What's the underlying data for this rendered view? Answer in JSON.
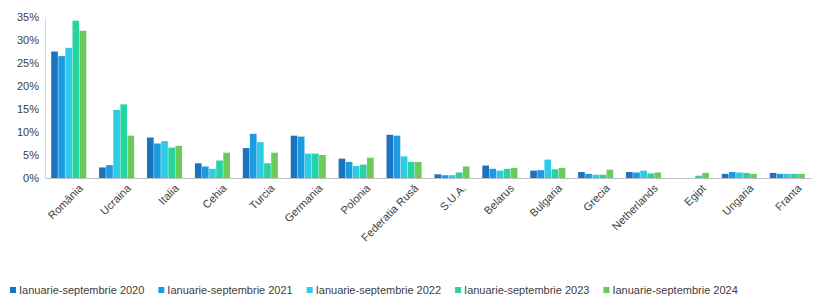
{
  "chart_data": {
    "type": "bar",
    "categories": [
      "România",
      "Ucraina",
      "Italia",
      "Cehia",
      "Turcia",
      "Germania",
      "Polonia",
      "Federatia Rusă",
      "S.U.A.",
      "Belarus",
      "Bulgaria",
      "Grecia",
      "Netherlands",
      "Egipt",
      "Ungaria",
      "Franta"
    ],
    "series": [
      {
        "name": "Ianuarie-septembrie 2020",
        "color": "#1e73be",
        "values": [
          27.5,
          2.3,
          8.8,
          3.2,
          6.5,
          9.2,
          4.2,
          9.4,
          0.8,
          2.7,
          1.6,
          1.3,
          1.3,
          0,
          0.9,
          1.1
        ]
      },
      {
        "name": "Ianuarie-septembrie 2021",
        "color": "#1b9be0",
        "values": [
          26.5,
          2.8,
          7.5,
          2.5,
          9.6,
          9.0,
          3.5,
          9.2,
          0.6,
          2.0,
          1.7,
          0.9,
          1.2,
          0,
          1.3,
          0.9
        ]
      },
      {
        "name": "Ianuarie-septembrie 2022",
        "color": "#2ccbe6",
        "values": [
          28.3,
          14.8,
          8.0,
          2.0,
          7.8,
          5.3,
          2.6,
          4.7,
          0.6,
          1.6,
          4.0,
          0.7,
          1.6,
          0,
          1.2,
          0.9
        ]
      },
      {
        "name": "Ianuarie-septembrie 2023",
        "color": "#27d4a0",
        "values": [
          34.2,
          16.0,
          6.6,
          3.8,
          3.2,
          5.3,
          2.9,
          3.5,
          1.2,
          2.0,
          1.9,
          0.7,
          1.0,
          0.5,
          1.1,
          0.9
        ]
      },
      {
        "name": "Ianuarie-septembrie 2024",
        "color": "#6cc95c",
        "values": [
          32.0,
          9.2,
          7.0,
          5.5,
          5.5,
          5.0,
          4.4,
          3.5,
          2.5,
          2.2,
          2.2,
          1.8,
          1.2,
          1.1,
          0.9,
          0.9
        ]
      }
    ],
    "ylim": [
      0,
      35
    ],
    "yticks": [
      {
        "value": 0,
        "label": "0%"
      },
      {
        "value": 5,
        "label": "5%"
      },
      {
        "value": 10,
        "label": "10%"
      },
      {
        "value": 15,
        "label": "15%"
      },
      {
        "value": 20,
        "label": "20%"
      },
      {
        "value": 25,
        "label": "25%"
      },
      {
        "value": 30,
        "label": "30%"
      },
      {
        "value": 35,
        "label": "35%"
      }
    ],
    "grid": false,
    "legend": "bottom"
  }
}
